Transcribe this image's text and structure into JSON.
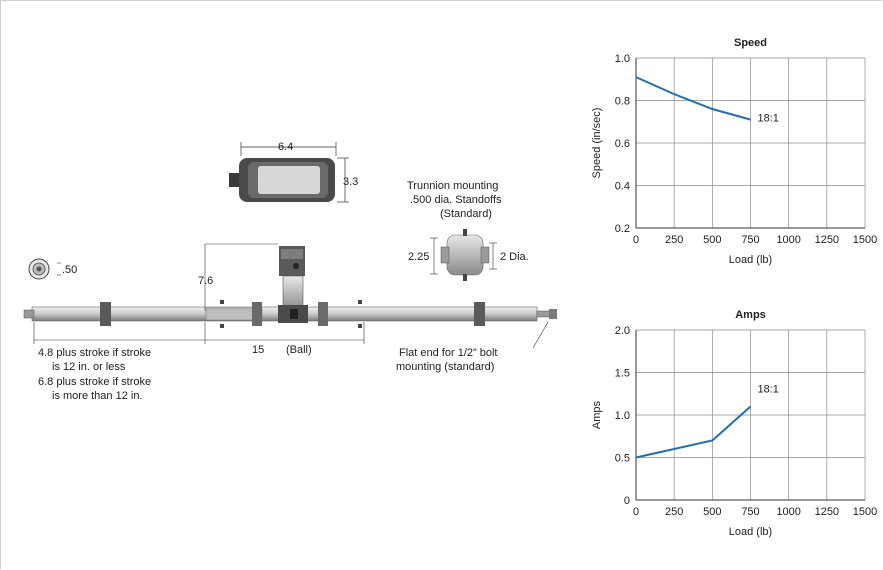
{
  "diagram": {
    "dims": {
      "top_width": "6.4",
      "top_height": "3.3",
      "rod_dia": ".50",
      "height": "7.6",
      "trunnion_height": "2.25",
      "trunnion_dia": "2 Dia.",
      "ball": "15",
      "ball_label": "(Ball)"
    },
    "trunnion_note": [
      "Trunnion mounting",
      ".500 dia. Standoffs",
      "(Standard)"
    ],
    "stroke_note": [
      "4.8 plus stroke if stroke",
      "is 12 in. or less",
      "6.8 plus stroke if stroke",
      "is more than 12 in."
    ],
    "flat_end_note": [
      "Flat end for 1/2” bolt",
      "mounting (standard)"
    ]
  },
  "chart_data": [
    {
      "type": "line",
      "title": "Speed",
      "xlabel": "Load (lb)",
      "ylabel": "Speed (in/sec)",
      "xlim": [
        0,
        1500
      ],
      "ylim": [
        0.2,
        1.0
      ],
      "xticks": [
        "0",
        "250",
        "500",
        "750",
        "1000",
        "1250",
        "1500"
      ],
      "yticks": [
        "1.0",
        "0.8",
        "0.6",
        "0.4",
        "0.2"
      ],
      "grid": true,
      "series": [
        {
          "name": "18:1",
          "color": "#1f6fb5",
          "x": [
            0,
            250,
            500,
            750
          ],
          "y": [
            0.91,
            0.83,
            0.76,
            0.71
          ]
        }
      ]
    },
    {
      "type": "line",
      "title": "Amps",
      "xlabel": "Load (lb)",
      "ylabel": "Amps",
      "xlim": [
        0,
        1500
      ],
      "ylim": [
        0,
        2.0
      ],
      "xticks": [
        "0",
        "250",
        "500",
        "750",
        "1000",
        "1250",
        "1500"
      ],
      "yticks": [
        "2.0",
        "1.5",
        "1.0",
        "0.5",
        "0"
      ],
      "grid": true,
      "series": [
        {
          "name": "18:1",
          "color": "#1f6fb5",
          "x": [
            0,
            500,
            750
          ],
          "y": [
            0.5,
            0.7,
            1.1
          ]
        }
      ]
    }
  ]
}
